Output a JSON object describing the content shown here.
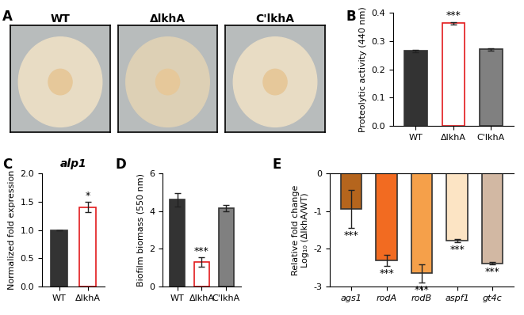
{
  "chart_data": [
    {
      "type": "image",
      "panel": "A",
      "categories": [
        "WT",
        "ΔlkhA",
        "C'lkhA"
      ]
    },
    {
      "type": "bar",
      "panel": "B",
      "categories": [
        "WT",
        "ΔlkhA",
        "C'lkhA"
      ],
      "values": [
        0.265,
        0.363,
        0.27
      ],
      "errors": [
        0.004,
        0.004,
        0.003
      ],
      "colors": [
        "#333333",
        "#ffffff",
        "#808080"
      ],
      "y_label": "Proteolytic activity (440 nm)",
      "ylim": [
        0,
        0.4
      ],
      "yticks": [
        {
          "value": 0,
          "label": "0.0"
        },
        0.1,
        0.2,
        0.3,
        0.4
      ],
      "annotations": [
        {
          "category": "ΔlkhA",
          "text": "***"
        }
      ]
    },
    {
      "type": "bar",
      "panel": "C",
      "title": "alp1",
      "categories": [
        "WT",
        "ΔlkhA"
      ],
      "values": [
        1.0,
        1.4
      ],
      "errors": [
        0,
        0.09
      ],
      "colors": [
        "#333333",
        "#ffffff"
      ],
      "y_label": "Normalized fold expression",
      "ylim": [
        0,
        2.0
      ],
      "yticks": [
        {
          "value": 0,
          "label": "0.0"
        },
        0.5,
        {
          "value": 1,
          "label": "1.0"
        },
        1.5,
        {
          "value": 2,
          "label": "2.0"
        }
      ],
      "annotations": [
        {
          "category": "ΔlkhA",
          "text": "*"
        }
      ]
    },
    {
      "type": "bar",
      "panel": "D",
      "categories": [
        "WT",
        "ΔlkhA",
        "C'lkhA"
      ],
      "values": [
        4.6,
        1.3,
        4.15
      ],
      "errors": [
        0.35,
        0.25,
        0.18
      ],
      "colors": [
        "#333333",
        "#ffffff",
        "#808080"
      ],
      "y_label": "Biofilm biomass (550 nm)",
      "ylim": [
        0,
        6
      ],
      "yticks": [
        0,
        2,
        4,
        6
      ],
      "annotations": [
        {
          "category": "ΔlkhA",
          "text": "***"
        }
      ]
    },
    {
      "type": "bar",
      "panel": "E",
      "categories": [
        "ags1",
        "rodA",
        "rodB",
        "aspf1",
        "gt4c"
      ],
      "values": [
        -0.95,
        -2.3,
        -2.65,
        -1.78,
        -2.38
      ],
      "errors": [
        0.5,
        0.15,
        0.25,
        0.05,
        0.04
      ],
      "colors": [
        "#b5651d",
        "#f26b21",
        "#f5a04a",
        "#fce4c4",
        "#d2b8a3"
      ],
      "y_label": "Relative fold change\nLog₁₀ (ΔlkhA/WT)",
      "ylim": [
        -3,
        0
      ],
      "yticks": [
        -3,
        -2,
        -1,
        0
      ],
      "annotations": [
        {
          "category": "ags1",
          "text": "***"
        },
        {
          "category": "rodA",
          "text": "***"
        },
        {
          "category": "rodB",
          "text": "***"
        },
        {
          "category": "aspf1",
          "text": "***"
        },
        {
          "category": "gt4c",
          "text": "***"
        }
      ]
    }
  ]
}
